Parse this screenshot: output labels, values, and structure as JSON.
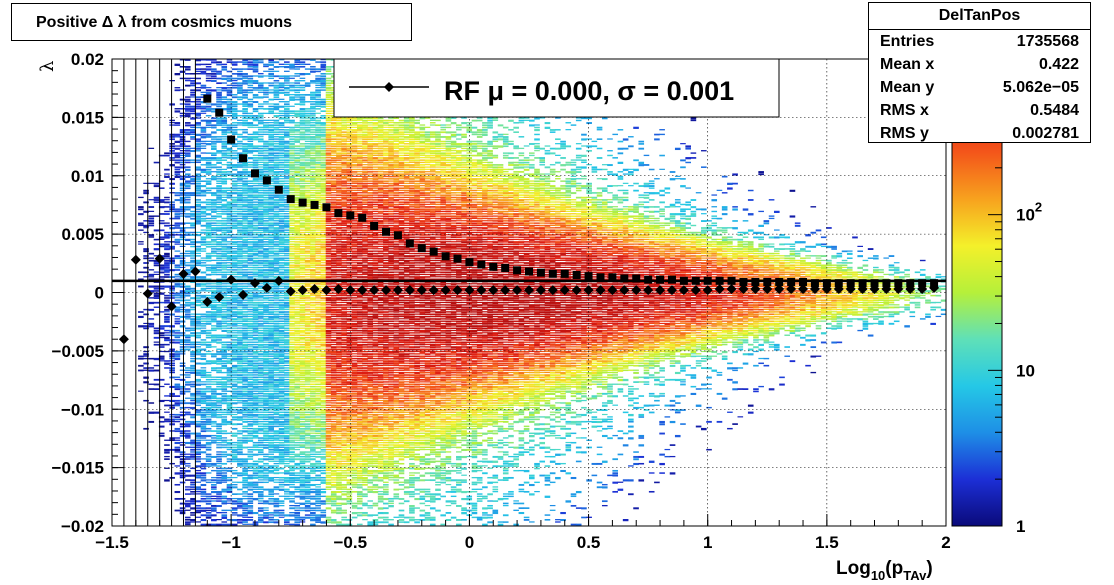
{
  "title": "Positive Δ λ from cosmics muons",
  "stats": {
    "name": "DelTanPos",
    "rows": [
      {
        "label": "Entries",
        "value": "1735568"
      },
      {
        "label": "Mean x",
        "value": "0.422"
      },
      {
        "label": "Mean y",
        "value": "5.062e−05"
      },
      {
        "label": "RMS x",
        "value": "0.5484"
      },
      {
        "label": "RMS y",
        "value": "0.002781"
      }
    ]
  },
  "legend": {
    "label": "RF μ =  0.000, σ =   0.001"
  },
  "chart_data": {
    "type": "heatmap",
    "xlabel_main": "Log",
    "xlabel_sub": "10",
    "xlabel_mid": "(p",
    "xlabel_sub2": "TAv",
    "xlabel_end": ")",
    "ylabel": "λ",
    "xlim": [
      -1.5,
      2
    ],
    "ylim": [
      -0.02,
      0.02
    ],
    "x_ticks": [
      -1.5,
      -1,
      -0.5,
      0,
      0.5,
      1,
      1.5,
      2
    ],
    "x_tick_labels": [
      "−1.5",
      "−1",
      "−0.5",
      "0",
      "0.5",
      "1",
      "1.5",
      "2"
    ],
    "y_ticks": [
      -0.02,
      -0.015,
      -0.01,
      -0.005,
      0,
      0.005,
      0.01,
      0.015,
      0.02
    ],
    "y_tick_labels": [
      "−0.02",
      "−0.015",
      "−0.01",
      "−0.005",
      "0",
      "0.005",
      "0.01",
      "0.015",
      "0.02"
    ],
    "grid": true,
    "z_scale": "log",
    "z_ticks": [
      {
        "value": 1,
        "base": "1",
        "exp": ""
      },
      {
        "value": 10,
        "base": "10",
        "exp": ""
      },
      {
        "value": 100,
        "base": "10",
        "exp": "2"
      }
    ],
    "z_max": 1000,
    "colormap": [
      "#0a0a7a",
      "#1c2fd6",
      "#1e8fe6",
      "#25c8e6",
      "#5fe0b8",
      "#b6f03a",
      "#f4f02a",
      "#f7a21e",
      "#f4561a",
      "#e01e12",
      "#b80f0f"
    ],
    "overlay_line": {
      "y": 0.001,
      "color": "#000000"
    },
    "series": [
      {
        "name": "RF",
        "marker": "diamond",
        "x": [
          -1.45,
          -1.4,
          -1.35,
          -1.3,
          -1.25,
          -1.2,
          -1.15,
          -1.1,
          -1.05,
          -1.0,
          -0.95,
          -0.9,
          -0.85,
          -0.8,
          -0.75,
          -0.7,
          -0.65,
          -0.6,
          -0.55,
          -0.5,
          -0.45,
          -0.4,
          -0.35,
          -0.3,
          -0.25,
          -0.2,
          -0.15,
          -0.1,
          -0.05,
          0.0,
          0.05,
          0.1,
          0.15,
          0.2,
          0.25,
          0.3,
          0.35,
          0.4,
          0.45,
          0.5,
          0.55,
          0.6,
          0.65,
          0.7,
          0.75,
          0.8,
          0.85,
          0.9,
          0.95,
          1.0,
          1.05,
          1.1,
          1.15,
          1.2,
          1.25,
          1.3,
          1.35,
          1.4,
          1.45,
          1.5,
          1.55,
          1.6,
          1.65,
          1.7,
          1.75,
          1.8,
          1.85,
          1.9,
          1.95
        ],
        "y": [
          -0.004,
          0.0028,
          -0.0001,
          0.0029,
          -0.0012,
          0.0016,
          0.0018,
          -0.0008,
          -0.0004,
          0.0011,
          -0.0002,
          0.0008,
          0.0004,
          0.001,
          0.0001,
          0.0002,
          0.0003,
          0.0002,
          0.0003,
          0.0002,
          0.0002,
          0.0002,
          0.0002,
          0.0002,
          0.0002,
          0.0002,
          0.0002,
          0.0002,
          0.0002,
          0.0002,
          0.0002,
          0.0002,
          0.0002,
          0.0002,
          0.0002,
          0.0002,
          0.0002,
          0.0002,
          0.0002,
          0.0002,
          0.0002,
          0.0002,
          0.0002,
          0.0002,
          0.0002,
          0.0002,
          0.0002,
          0.0002,
          0.0002,
          0.0002,
          0.0003,
          0.0003,
          0.0003,
          0.0003,
          0.0003,
          0.0003,
          0.0003,
          0.0003,
          0.0003,
          0.0003,
          0.0003,
          0.0003,
          0.0003,
          0.0003,
          0.0003,
          0.0003,
          0.0003,
          0.0003,
          0.0004
        ]
      },
      {
        "name": "sigma",
        "marker": "square",
        "x": [
          -1.1,
          -1.05,
          -1.0,
          -0.95,
          -0.9,
          -0.85,
          -0.8,
          -0.75,
          -0.7,
          -0.65,
          -0.6,
          -0.55,
          -0.5,
          -0.45,
          -0.4,
          -0.35,
          -0.3,
          -0.25,
          -0.2,
          -0.15,
          -0.1,
          -0.05,
          0.0,
          0.05,
          0.1,
          0.15,
          0.2,
          0.25,
          0.3,
          0.35,
          0.4,
          0.45,
          0.5,
          0.55,
          0.6,
          0.65,
          0.7,
          0.75,
          0.8,
          0.85,
          0.9,
          0.95,
          1.0,
          1.05,
          1.1,
          1.15,
          1.2,
          1.25,
          1.3,
          1.35,
          1.4,
          1.45,
          1.5,
          1.55,
          1.6,
          1.65,
          1.7,
          1.75,
          1.8,
          1.85,
          1.9,
          1.95
        ],
        "y": [
          0.0166,
          0.0154,
          0.0131,
          0.0115,
          0.0102,
          0.0096,
          0.0088,
          0.008,
          0.0077,
          0.0075,
          0.0073,
          0.0068,
          0.0066,
          0.0064,
          0.0057,
          0.0052,
          0.0049,
          0.0042,
          0.0038,
          0.0035,
          0.0031,
          0.0029,
          0.0026,
          0.0024,
          0.0022,
          0.0021,
          0.0019,
          0.0018,
          0.0017,
          0.0016,
          0.0016,
          0.0015,
          0.0014,
          0.0013,
          0.0013,
          0.0012,
          0.0012,
          0.0011,
          0.0011,
          0.0011,
          0.001,
          0.001,
          0.001,
          0.001,
          0.001,
          0.0009,
          0.0009,
          0.0009,
          0.0009,
          0.0009,
          0.0009,
          0.0008,
          0.0008,
          0.0008,
          0.0008,
          0.0008,
          0.0008,
          0.0008,
          0.0008,
          0.0008,
          0.0008,
          0.0008
        ]
      }
    ]
  }
}
